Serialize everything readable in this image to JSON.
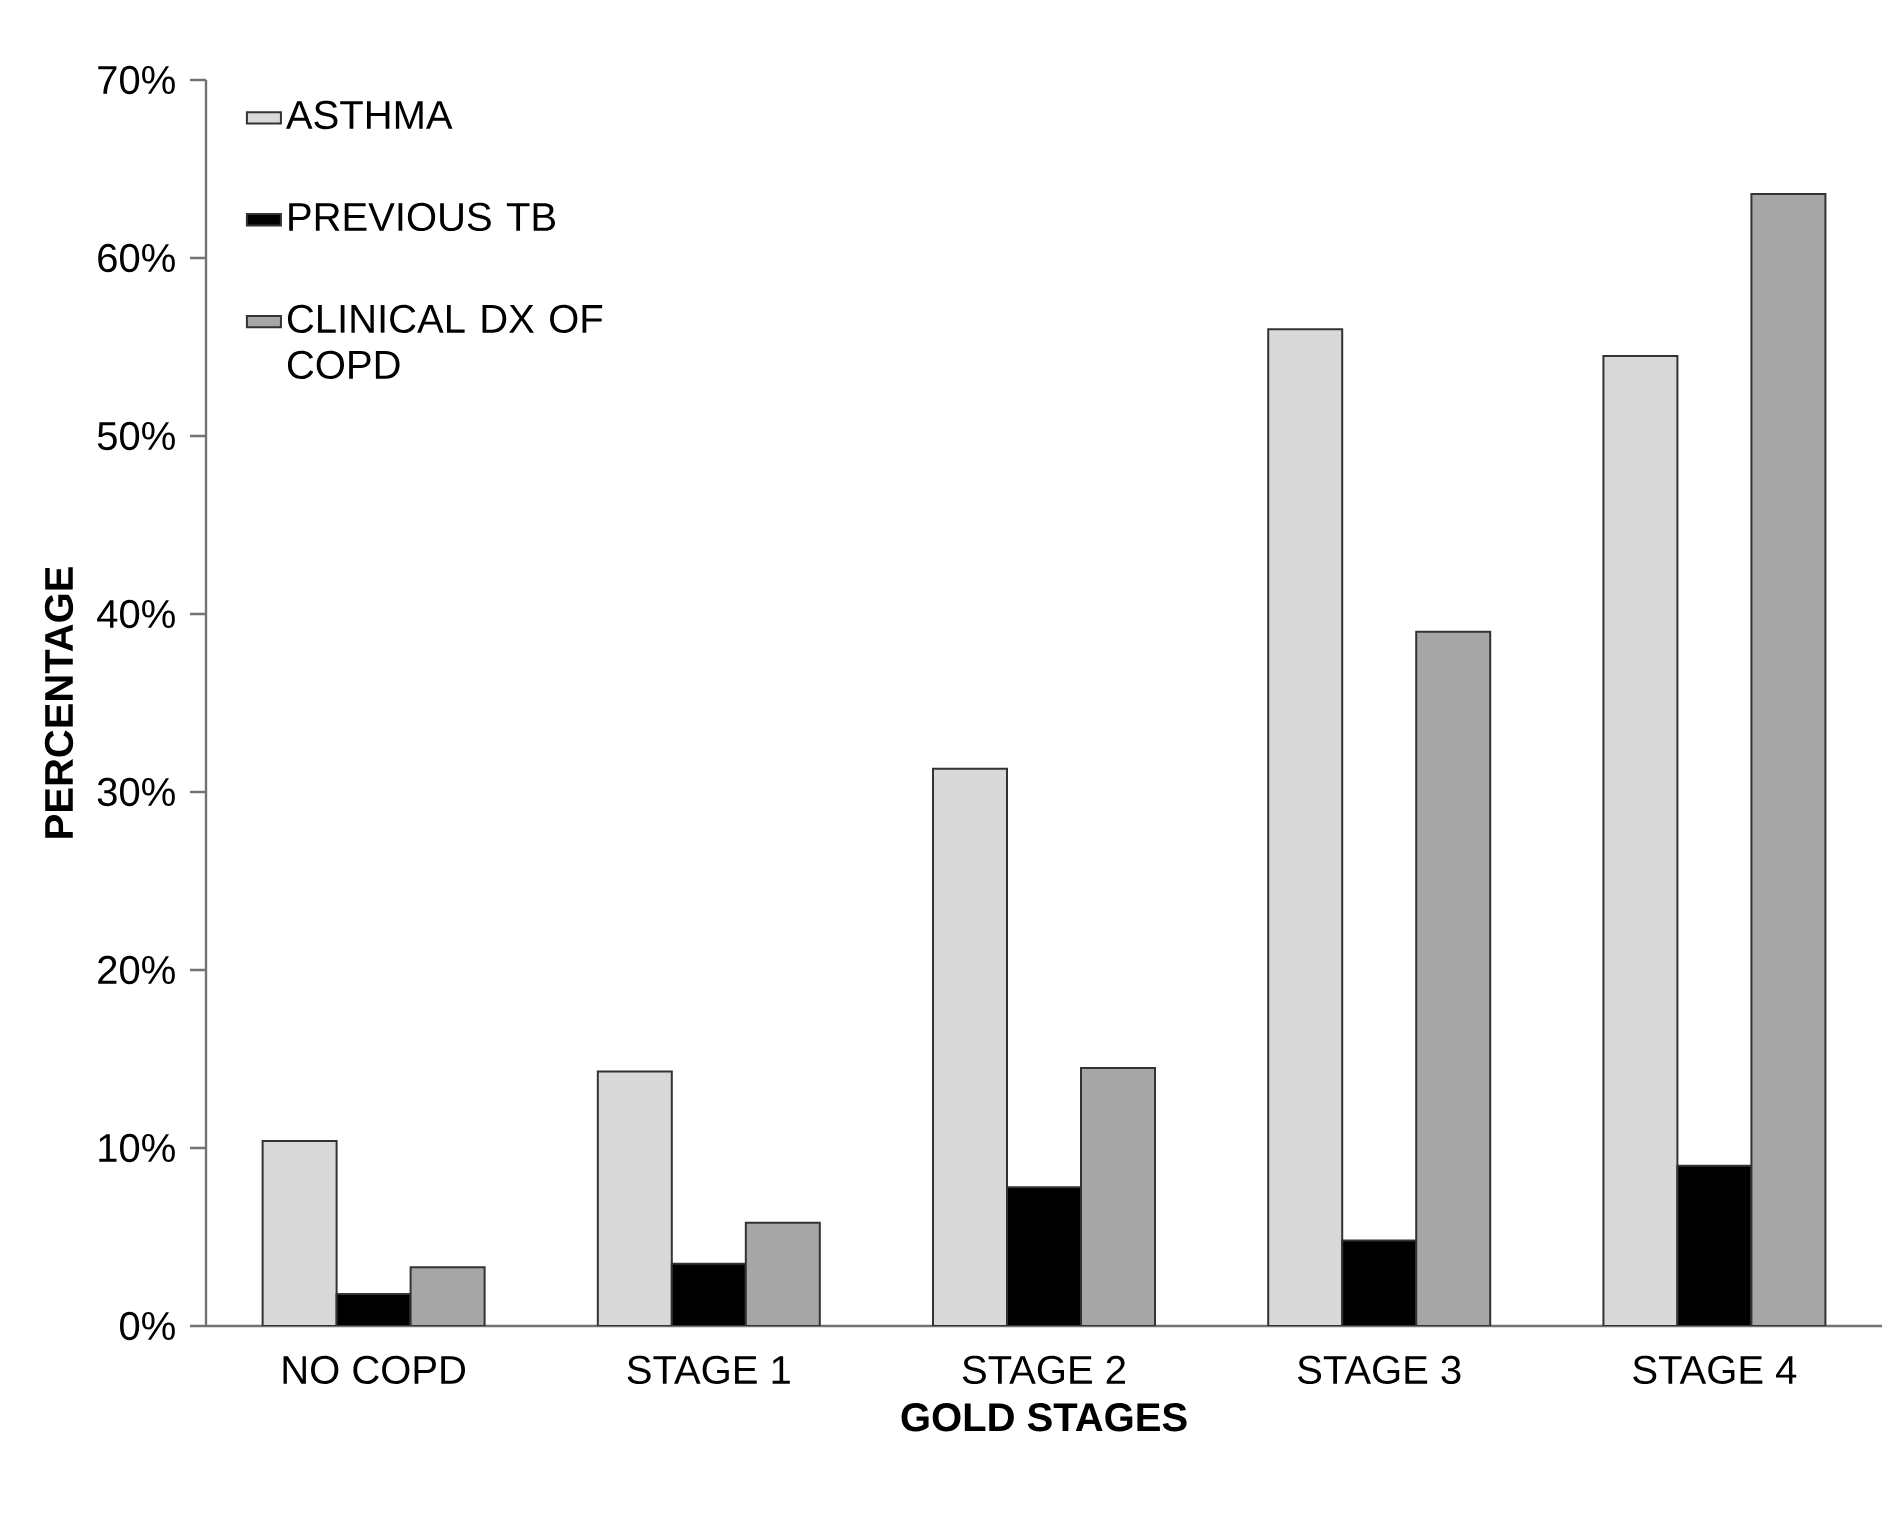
{
  "chart_data": {
    "type": "bar",
    "xlabel": "GOLD STAGES",
    "ylabel": "PERCENTAGE",
    "categories": [
      "NO COPD",
      "STAGE 1",
      "STAGE 2",
      "STAGE 3",
      "STAGE 4"
    ],
    "series": [
      {
        "name": "ASTHMA",
        "color": "#d9d9d9",
        "values": [
          10.4,
          14.3,
          31.3,
          56.0,
          54.5
        ]
      },
      {
        "name": "PREVIOUS TB",
        "color": "#000000",
        "values": [
          1.8,
          3.5,
          7.8,
          4.8,
          9.0
        ]
      },
      {
        "name": "CLINICAL DX OF COPD",
        "color": "#a6a6a6",
        "values": [
          3.3,
          5.8,
          14.5,
          39.0,
          63.6
        ]
      }
    ],
    "ylim": [
      0,
      70
    ],
    "yticks": [
      {
        "value": 0,
        "label": "0%"
      },
      {
        "value": 10,
        "label": "10%"
      },
      {
        "value": 20,
        "label": "20%"
      },
      {
        "value": 30,
        "label": "30%"
      },
      {
        "value": 40,
        "label": "40%"
      },
      {
        "value": 50,
        "label": "50%"
      },
      {
        "value": 60,
        "label": "60%"
      },
      {
        "value": 70,
        "label": "70%"
      }
    ],
    "grid": false,
    "legend": "top left"
  }
}
